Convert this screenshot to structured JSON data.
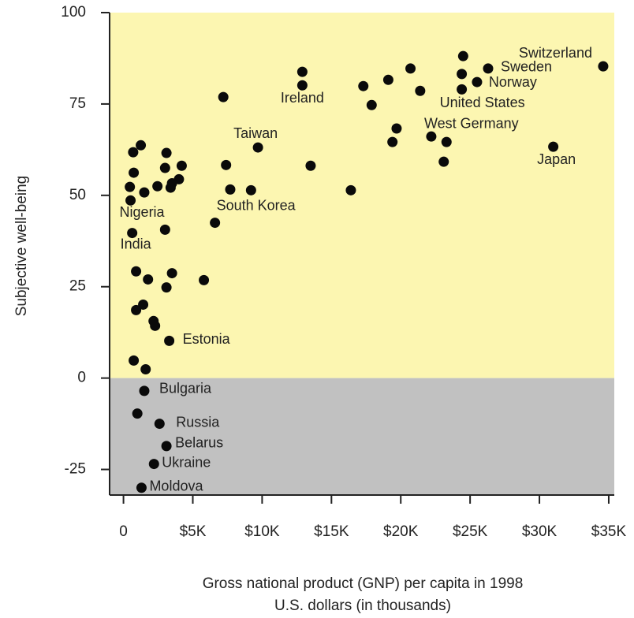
{
  "chart_data": {
    "type": "scatter",
    "xlabel": [
      "Gross national product (GNP) per capita in 1998",
      "U.S. dollars (in thousands)"
    ],
    "ylabel": "Subjective well-being",
    "xlim": [
      -1,
      35.4
    ],
    "ylim": [
      -32,
      100
    ],
    "xticks": [
      0,
      {
        "value": 5,
        "label": "$5K"
      },
      {
        "value": 10,
        "label": "$10K"
      },
      {
        "value": 15,
        "label": "$15K"
      },
      {
        "value": 20,
        "label": "$20K"
      },
      {
        "value": 25,
        "label": "$25K"
      },
      {
        "value": 30,
        "label": "$30K"
      },
      {
        "value": 35,
        "label": "$35K"
      }
    ],
    "yticks": [
      -25,
      0,
      25,
      50,
      75,
      100
    ],
    "positive_color": "#fcf6b1",
    "negative_color": "#c1c1c1",
    "color": "#0a0a0a",
    "x": [
      34.6,
      26.3,
      24.5,
      24.4,
      25.5,
      24.4,
      20.7,
      19.1,
      17.3,
      17.9,
      21.4,
      12.9,
      12.9,
      7.2,
      19.7,
      19.4,
      22.2,
      23.3,
      23.1,
      31.0,
      9.7,
      7.4,
      13.5,
      7.7,
      9.2,
      16.4,
      6.6,
      1.25,
      0.7,
      3.1,
      4.2,
      3.0,
      0.74,
      4.0,
      3.5,
      3.4,
      2.45,
      1.5,
      0.46,
      0.51,
      3.0,
      0.63,
      0.91,
      3.5,
      1.77,
      5.8,
      3.1,
      1.42,
      0.91,
      2.17,
      2.28,
      3.3,
      0.74,
      1.6,
      1.5,
      1.0,
      2.6,
      3.1,
      2.2,
      1.3
    ],
    "y": [
      85.3,
      84.7,
      88.1,
      83.2,
      81.0,
      79.0,
      84.7,
      81.6,
      79.9,
      74.7,
      78.6,
      83.8,
      80.1,
      76.9,
      68.3,
      64.6,
      66.1,
      64.6,
      59.2,
      63.3,
      63.1,
      58.3,
      58.1,
      51.6,
      51.4,
      51.4,
      42.5,
      63.7,
      61.8,
      61.6,
      58.1,
      57.5,
      56.2,
      54.4,
      53.3,
      52.1,
      52.5,
      50.8,
      52.3,
      48.6,
      40.6,
      39.7,
      29.2,
      28.7,
      27.0,
      26.8,
      24.8,
      20.1,
      18.6,
      15.6,
      14.3,
      10.2,
      4.8,
      2.4,
      -3.5,
      -9.7,
      -12.5,
      -18.6,
      -23.5,
      -30.0
    ],
    "labels": [
      "Switzerland",
      "Sweden",
      null,
      null,
      "Norway",
      "United States",
      null,
      null,
      null,
      null,
      null,
      null,
      "Ireland",
      null,
      "West Germany",
      null,
      null,
      null,
      null,
      "Japan",
      "Taiwan",
      null,
      null,
      null,
      null,
      null,
      "South Korea",
      null,
      null,
      null,
      null,
      null,
      null,
      null,
      null,
      null,
      null,
      null,
      null,
      "Nigeria",
      null,
      "India",
      null,
      null,
      null,
      null,
      null,
      null,
      null,
      null,
      null,
      "Estonia",
      null,
      null,
      "Bulgaria",
      null,
      "Russia",
      "Belarus",
      "Ukraine",
      "Moldova"
    ]
  }
}
